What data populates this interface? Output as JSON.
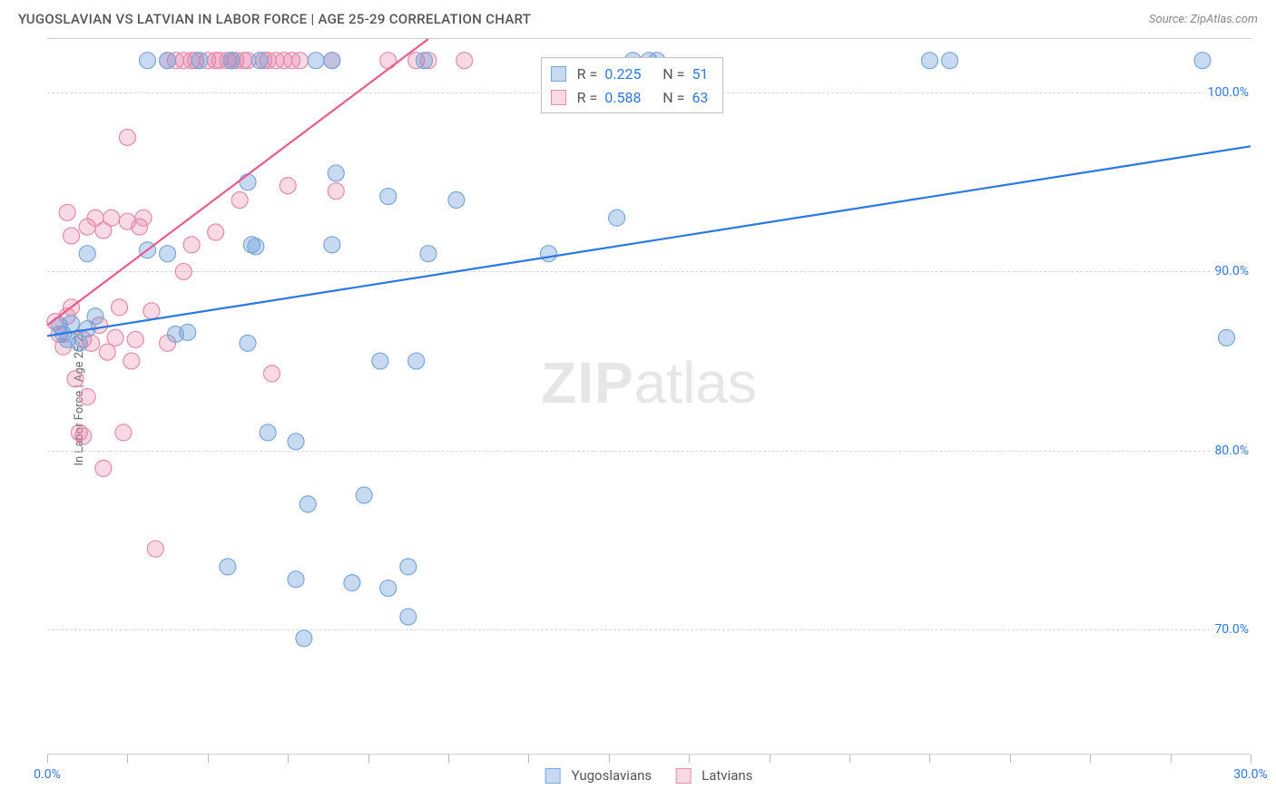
{
  "title": "YUGOSLAVIAN VS LATVIAN IN LABOR FORCE | AGE 25-29 CORRELATION CHART",
  "source_label": "Source: ZipAtlas.com",
  "ylabel": "In Labor Force | Age 25-29",
  "watermark_a": "ZIP",
  "watermark_b": "atlas",
  "colors": {
    "series1_fill": "rgba(96,150,217,0.35)",
    "series1_stroke": "#7aa7d9",
    "series1_line": "#2b78e4",
    "series2_fill": "rgba(233,130,165,0.30)",
    "series2_stroke": "#e38bab",
    "series2_line": "#e85b8a",
    "grid": "#d8d8d8",
    "axis": "#cfcfcf",
    "ytick_text": "#2b78e4",
    "xtick_text1": "#2b78e4",
    "xtick_text2": "#2b78e4",
    "title_text": "#555555"
  },
  "stats": {
    "r1_label": "R =",
    "r1_value": "0.225",
    "n1_label": "N =",
    "n1_value": "51",
    "r2_label": "R =",
    "r2_value": "0.588",
    "n2_label": "N =",
    "n2_value": "63"
  },
  "legend": {
    "series1": "Yugoslavians",
    "series2": "Latvians"
  },
  "chart": {
    "type": "scatter",
    "x_range": [
      0,
      30
    ],
    "y_range": [
      63,
      103
    ],
    "y_ticks": [
      70,
      80,
      90,
      100
    ],
    "y_tick_labels": [
      "70.0%",
      "80.0%",
      "90.0%",
      "100.0%"
    ],
    "x_minor_ticks": [
      0,
      2,
      4,
      6,
      8,
      10,
      12,
      14,
      16,
      18,
      20,
      22,
      24,
      26,
      28,
      30
    ],
    "x_labels": [
      {
        "x": 0,
        "label": "0.0%"
      },
      {
        "x": 30,
        "label": "30.0%"
      }
    ],
    "marker_radius": 9,
    "line_width": 2.2,
    "series1_line": {
      "x1": 0,
      "y1": 86.4,
      "x2": 30,
      "y2": 97.0
    },
    "series2_line": {
      "x1": 0,
      "y1": 87.0,
      "x2": 9.5,
      "y2": 103.0
    },
    "series1_points": [
      [
        0.3,
        87.0
      ],
      [
        0.4,
        86.5
      ],
      [
        0.5,
        86.2
      ],
      [
        0.6,
        87.1
      ],
      [
        0.8,
        86.0
      ],
      [
        1.0,
        86.8
      ],
      [
        1.2,
        87.5
      ],
      [
        1.0,
        91.0
      ],
      [
        2.5,
        91.2
      ],
      [
        3.0,
        91.0
      ],
      [
        3.5,
        86.6
      ],
      [
        5.0,
        95.0
      ],
      [
        5.1,
        91.5
      ],
      [
        5.2,
        91.4
      ],
      [
        3.2,
        86.5
      ],
      [
        3.8,
        101.8
      ],
      [
        4.6,
        101.8
      ],
      [
        5.0,
        86.0
      ],
      [
        5.3,
        101.8
      ],
      [
        5.5,
        81.0
      ],
      [
        6.2,
        80.5
      ],
      [
        6.5,
        77.0
      ],
      [
        6.2,
        72.8
      ],
      [
        6.4,
        69.5
      ],
      [
        6.7,
        101.8
      ],
      [
        7.1,
        91.5
      ],
      [
        7.2,
        95.5
      ],
      [
        7.6,
        72.6
      ],
      [
        7.9,
        77.5
      ],
      [
        8.3,
        85.0
      ],
      [
        8.5,
        94.2
      ],
      [
        8.5,
        72.3
      ],
      [
        9.0,
        73.5
      ],
      [
        9.0,
        70.7
      ],
      [
        9.2,
        85.0
      ],
      [
        9.4,
        101.8
      ],
      [
        9.5,
        91.0
      ],
      [
        10.2,
        94.0
      ],
      [
        12.5,
        91.0
      ],
      [
        14.2,
        93.0
      ],
      [
        14.6,
        101.8
      ],
      [
        15.0,
        101.8
      ],
      [
        15.2,
        101.8
      ],
      [
        22.0,
        101.8
      ],
      [
        22.5,
        101.8
      ],
      [
        28.8,
        101.8
      ],
      [
        29.4,
        86.3
      ],
      [
        4.5,
        73.5
      ],
      [
        2.5,
        101.8
      ],
      [
        3.0,
        101.8
      ],
      [
        7.1,
        101.8
      ]
    ],
    "series2_points": [
      [
        0.2,
        87.2
      ],
      [
        0.3,
        86.5
      ],
      [
        0.4,
        85.8
      ],
      [
        0.5,
        87.5
      ],
      [
        0.6,
        88.0
      ],
      [
        0.7,
        84.0
      ],
      [
        0.8,
        81.0
      ],
      [
        0.9,
        80.8
      ],
      [
        1.0,
        83.0
      ],
      [
        1.0,
        92.5
      ],
      [
        1.2,
        93.0
      ],
      [
        1.4,
        92.3
      ],
      [
        1.5,
        85.5
      ],
      [
        1.4,
        79.0
      ],
      [
        1.6,
        93.0
      ],
      [
        1.7,
        86.3
      ],
      [
        1.8,
        88.0
      ],
      [
        1.9,
        81.0
      ],
      [
        2.0,
        97.5
      ],
      [
        2.0,
        92.8
      ],
      [
        2.1,
        85.0
      ],
      [
        2.2,
        86.2
      ],
      [
        2.3,
        92.5
      ],
      [
        2.4,
        93.0
      ],
      [
        2.6,
        87.8
      ],
      [
        2.7,
        74.5
      ],
      [
        3.0,
        86.0
      ],
      [
        3.4,
        90.0
      ],
      [
        3.6,
        91.5
      ],
      [
        3.0,
        101.8
      ],
      [
        3.2,
        101.8
      ],
      [
        3.4,
        101.8
      ],
      [
        3.6,
        101.8
      ],
      [
        3.7,
        101.8
      ],
      [
        4.0,
        101.8
      ],
      [
        4.2,
        101.8
      ],
      [
        4.3,
        101.8
      ],
      [
        4.5,
        101.8
      ],
      [
        4.6,
        101.8
      ],
      [
        4.7,
        101.8
      ],
      [
        4.9,
        101.8
      ],
      [
        5.0,
        101.8
      ],
      [
        5.4,
        101.8
      ],
      [
        5.5,
        101.8
      ],
      [
        5.7,
        101.8
      ],
      [
        5.9,
        101.8
      ],
      [
        6.1,
        101.8
      ],
      [
        6.0,
        94.8
      ],
      [
        6.3,
        101.8
      ],
      [
        7.1,
        101.8
      ],
      [
        7.2,
        94.5
      ],
      [
        8.5,
        101.8
      ],
      [
        9.2,
        101.8
      ],
      [
        9.5,
        101.8
      ],
      [
        10.4,
        101.8
      ],
      [
        5.6,
        84.3
      ],
      [
        4.8,
        94.0
      ],
      [
        0.9,
        86.2
      ],
      [
        1.1,
        86.0
      ],
      [
        0.5,
        93.3
      ],
      [
        0.6,
        92.0
      ],
      [
        1.3,
        87.0
      ],
      [
        4.2,
        92.2
      ]
    ]
  }
}
